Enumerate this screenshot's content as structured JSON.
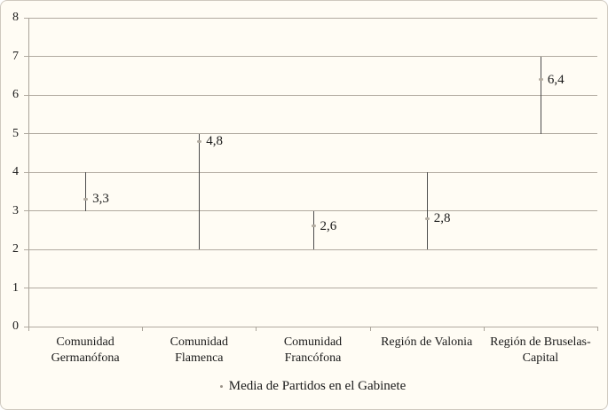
{
  "chart_data": {
    "type": "range-bar",
    "title": "",
    "legend_label": "Media de Partidos en el Gabinete",
    "legend_position": "bottom",
    "grid": "horizontal",
    "categories": [
      "Comunidad Germanófona",
      "Comunidad Flamenca",
      "Comunidad Francófona",
      "Región de Valonia",
      "Región de Bruselas-Capital"
    ],
    "category_label_lines": [
      [
        "Comunidad",
        "Germanófona"
      ],
      [
        "Comunidad",
        "Flamenca"
      ],
      [
        "Comunidad",
        "Francófona"
      ],
      [
        "Región de Valonia"
      ],
      [
        "Región de Bruselas-",
        "Capital"
      ]
    ],
    "range_low": [
      3,
      2,
      2,
      2,
      5
    ],
    "range_high": [
      4,
      5,
      3,
      4,
      7
    ],
    "mean": [
      3.3,
      4.8,
      2.6,
      2.8,
      6.4
    ],
    "value_labels": [
      "3,3",
      "4,8",
      "2,6",
      "2,8",
      "6,4"
    ],
    "ylim": [
      0,
      8
    ],
    "yticks": [
      "0",
      "1",
      "2",
      "3",
      "4",
      "5",
      "6",
      "7",
      "8"
    ],
    "xlabel": "",
    "ylabel": "",
    "colors": {
      "background": "#fffcf4",
      "figure_border": "#cfc9bf",
      "gridline": "#b1aaa0",
      "axis": "#aaa49a",
      "series_line": "#4d4d4d",
      "marker": "#b3aca1",
      "legend_dot": "#9a9287",
      "text": "#1a1a1a"
    }
  }
}
